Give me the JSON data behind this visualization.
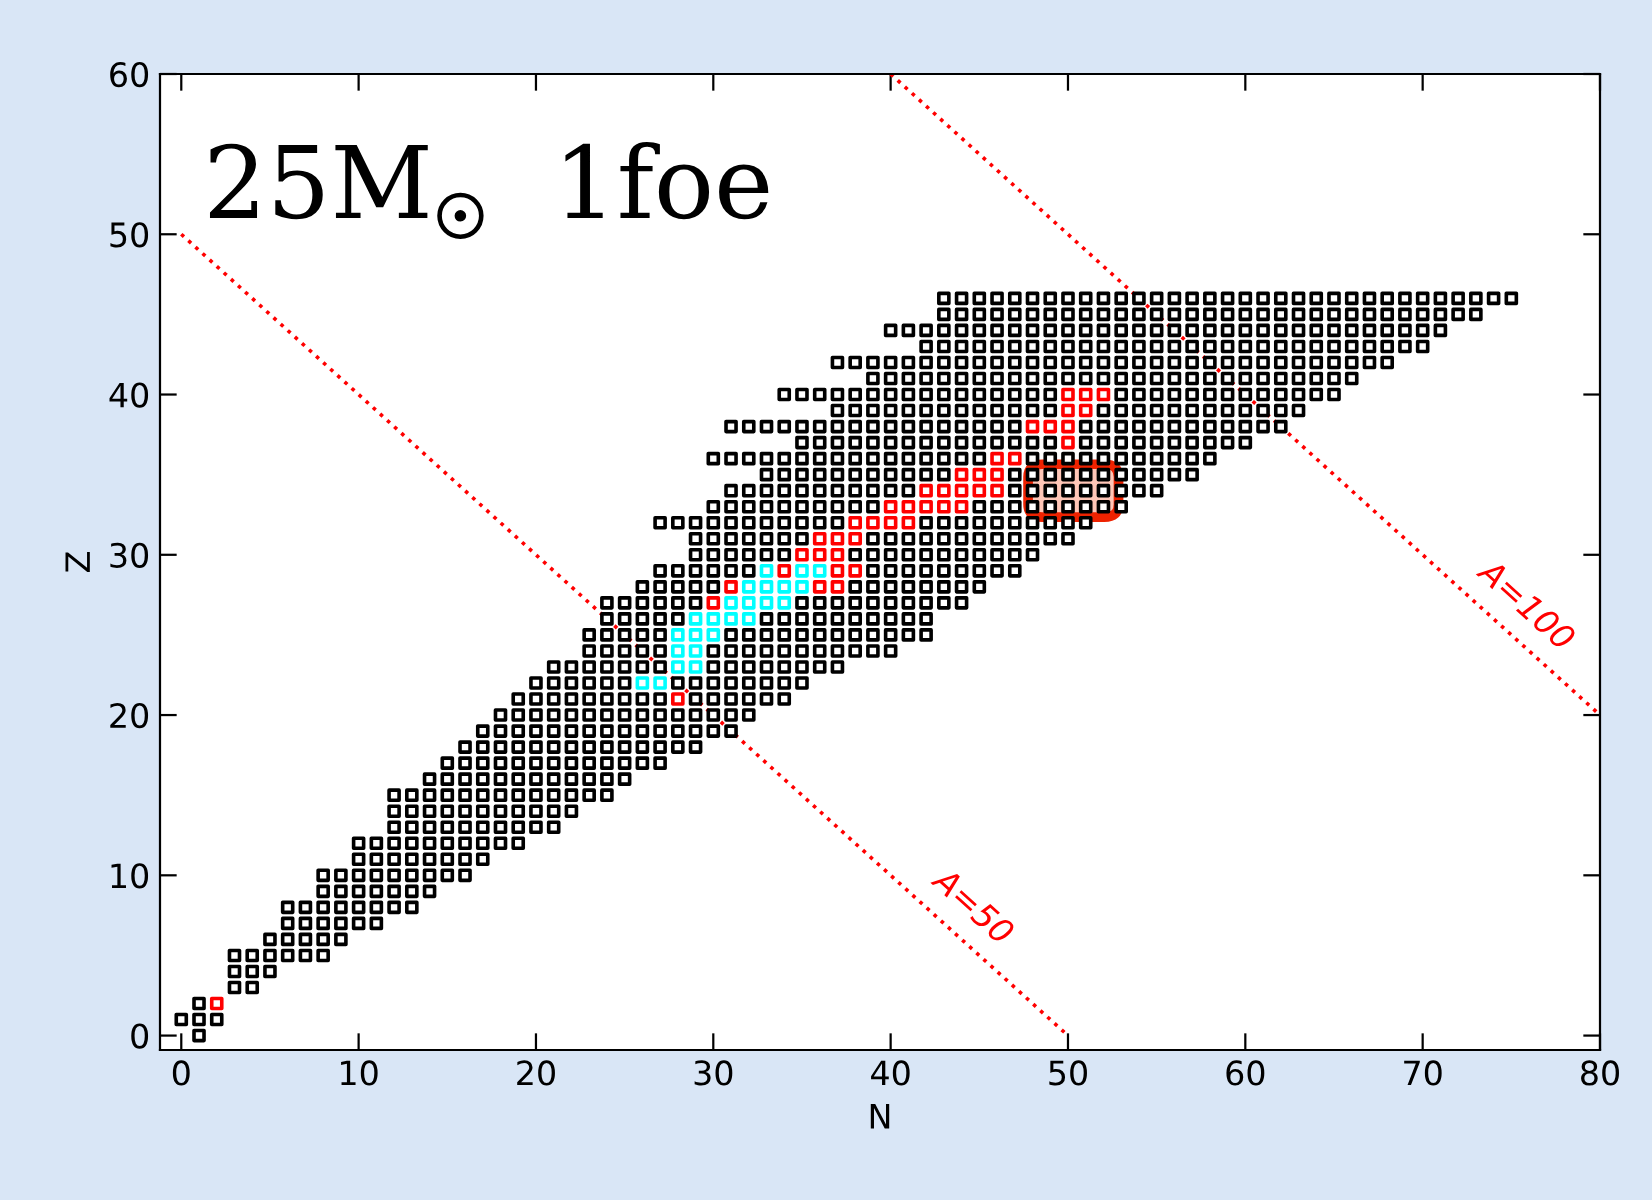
{
  "chart_data": {
    "type": "scatter",
    "xlabel": "N",
    "ylabel": "Z",
    "xlim": [
      -1.2,
      80
    ],
    "ylim": [
      -0.9,
      60
    ],
    "xticks": [
      0,
      10,
      20,
      30,
      40,
      50,
      60,
      70,
      80
    ],
    "yticks": [
      0,
      10,
      20,
      30,
      40,
      50,
      60
    ],
    "annotations": [
      "25M$_{☉}$  1foe"
    ],
    "marker": "square",
    "grid": false,
    "legend": false,
    "series": [
      {
        "color": "#000000",
        "x": [
          1
        ],
        "values": [
          0
        ]
      },
      {
        "color": "#000000",
        "x": [
          0,
          1,
          2
        ],
        "values": [
          1,
          1,
          1
        ]
      },
      {
        "color": "#000000",
        "x": [
          1
        ],
        "values": [
          2
        ]
      },
      {
        "color": "#000000",
        "x": [
          3,
          4
        ],
        "values": [
          3,
          3
        ]
      },
      {
        "color": "#000000",
        "x": [
          3,
          4,
          5
        ],
        "values": [
          4,
          4,
          4
        ]
      },
      {
        "color": "#000000",
        "x": [
          3,
          4,
          5,
          6,
          7,
          8
        ],
        "values": [
          5,
          5,
          5,
          5,
          5,
          5
        ]
      },
      {
        "color": "#000000",
        "x": [
          5,
          6,
          7,
          8,
          9
        ],
        "values": [
          6,
          6,
          6,
          6,
          6
        ]
      },
      {
        "color": "#000000",
        "x": [
          6,
          7,
          8,
          9,
          10,
          11
        ],
        "values": [
          7,
          7,
          7,
          7,
          7,
          7
        ]
      },
      {
        "color": "#000000",
        "x": [
          6,
          7,
          8,
          9,
          10,
          11,
          12,
          13
        ],
        "values": [
          8,
          8,
          8,
          8,
          8,
          8,
          8,
          8
        ]
      },
      {
        "color": "#000000",
        "x": [
          8,
          9,
          10,
          11,
          12,
          13,
          14
        ],
        "values": [
          9,
          9,
          9,
          9,
          9,
          9,
          9
        ]
      },
      {
        "color": "#000000",
        "x": [
          8,
          9,
          10,
          11,
          12,
          13,
          14,
          15,
          16
        ],
        "values": [
          10,
          10,
          10,
          10,
          10,
          10,
          10,
          10,
          10
        ]
      },
      {
        "color": "#000000",
        "x": [
          10,
          11,
          12,
          13,
          14,
          15,
          16,
          17
        ],
        "values": [
          11,
          11,
          11,
          11,
          11,
          11,
          11,
          11
        ]
      },
      {
        "color": "#000000",
        "x": [
          10,
          11,
          12,
          13,
          14,
          15,
          16,
          17,
          18,
          19
        ],
        "values": [
          12,
          12,
          12,
          12,
          12,
          12,
          12,
          12,
          12,
          12
        ]
      },
      {
        "color": "#000000",
        "x": [
          12,
          13,
          14,
          15,
          16,
          17,
          18,
          19,
          20,
          21
        ],
        "values": [
          13,
          13,
          13,
          13,
          13,
          13,
          13,
          13,
          13,
          13
        ]
      },
      {
        "color": "#000000",
        "x": [
          12,
          13,
          14,
          15,
          16,
          17,
          18,
          19,
          20,
          21,
          22
        ],
        "values": [
          14,
          14,
          14,
          14,
          14,
          14,
          14,
          14,
          14,
          14,
          14
        ]
      },
      {
        "color": "#000000",
        "x": [
          12,
          13,
          14,
          15,
          16,
          17,
          18,
          19,
          20,
          21,
          22,
          23,
          24
        ],
        "values": [
          15,
          15,
          15,
          15,
          15,
          15,
          15,
          15,
          15,
          15,
          15,
          15,
          15
        ]
      },
      {
        "color": "#000000",
        "x": [
          14,
          15,
          16,
          17,
          18,
          19,
          20,
          21,
          22,
          23,
          24,
          25
        ],
        "values": [
          16,
          16,
          16,
          16,
          16,
          16,
          16,
          16,
          16,
          16,
          16,
          16
        ]
      },
      {
        "color": "#000000",
        "x": [
          15,
          16,
          17,
          18,
          19,
          20,
          21,
          22,
          23,
          24,
          25,
          26,
          27
        ],
        "values": [
          17,
          17,
          17,
          17,
          17,
          17,
          17,
          17,
          17,
          17,
          17,
          17,
          17
        ]
      },
      {
        "color": "#000000",
        "x": [
          16,
          17,
          18,
          19,
          20,
          21,
          22,
          23,
          24,
          25,
          26,
          27,
          28,
          29
        ],
        "values": [
          18,
          18,
          18,
          18,
          18,
          18,
          18,
          18,
          18,
          18,
          18,
          18,
          18,
          18
        ]
      },
      {
        "color": "#000000",
        "x": [
          17,
          18,
          19,
          20,
          21,
          22,
          23,
          24,
          25,
          26,
          27,
          28,
          29,
          30,
          31
        ],
        "values": [
          19,
          19,
          19,
          19,
          19,
          19,
          19,
          19,
          19,
          19,
          19,
          19,
          19,
          19,
          19
        ]
      },
      {
        "color": "#000000",
        "x": [
          18,
          19,
          20,
          21,
          22,
          23,
          24,
          25,
          26,
          27,
          28,
          29,
          30,
          31,
          32
        ],
        "values": [
          20,
          20,
          20,
          20,
          20,
          20,
          20,
          20,
          20,
          20,
          20,
          20,
          20,
          20,
          20
        ]
      },
      {
        "color": "#000000",
        "x": [
          19,
          20,
          21,
          22,
          23,
          24,
          25,
          26,
          27,
          29,
          30,
          31,
          32,
          33,
          34
        ],
        "values": [
          21,
          21,
          21,
          21,
          21,
          21,
          21,
          21,
          21,
          21,
          21,
          21,
          21,
          21,
          21
        ]
      },
      {
        "color": "#000000",
        "x": [
          20,
          21,
          22,
          23,
          24,
          25,
          28,
          29,
          30,
          31,
          32,
          33,
          34,
          35
        ],
        "values": [
          22,
          22,
          22,
          22,
          22,
          22,
          22,
          22,
          22,
          22,
          22,
          22,
          22,
          22
        ]
      },
      {
        "color": "#000000",
        "x": [
          21,
          22,
          23,
          24,
          25,
          26,
          27,
          30,
          31,
          32,
          33,
          34,
          35,
          36,
          37
        ],
        "values": [
          23,
          23,
          23,
          23,
          23,
          23,
          23,
          23,
          23,
          23,
          23,
          23,
          23,
          23,
          23
        ]
      },
      {
        "color": "#000000",
        "x": [
          23,
          24,
          25,
          26,
          27,
          30,
          31,
          32,
          33,
          34,
          35,
          36,
          37,
          38,
          39,
          40
        ],
        "values": [
          24,
          24,
          24,
          24,
          24,
          24,
          24,
          24,
          24,
          24,
          24,
          24,
          24,
          24,
          24,
          24
        ]
      },
      {
        "color": "#000000",
        "x": [
          23,
          24,
          25,
          26,
          27,
          31,
          32,
          33,
          34,
          35,
          36,
          37,
          38,
          39,
          40,
          41,
          42
        ],
        "values": [
          25,
          25,
          25,
          25,
          25,
          25,
          25,
          25,
          25,
          25,
          25,
          25,
          25,
          25,
          25,
          25,
          25
        ]
      },
      {
        "color": "#000000",
        "x": [
          24,
          25,
          26,
          27,
          28,
          33,
          34,
          35,
          36,
          37,
          38,
          39,
          40,
          41,
          42
        ],
        "values": [
          26,
          26,
          26,
          26,
          26,
          26,
          26,
          26,
          26,
          26,
          26,
          26,
          26,
          26,
          26
        ]
      },
      {
        "color": "#000000",
        "x": [
          24,
          25,
          26,
          27,
          28,
          29,
          35,
          36,
          37,
          38,
          39,
          40,
          41,
          42,
          43,
          44
        ],
        "values": [
          27,
          27,
          27,
          27,
          27,
          27,
          27,
          27,
          27,
          27,
          27,
          27,
          27,
          27,
          27,
          27
        ]
      },
      {
        "color": "#000000",
        "x": [
          26,
          27,
          28,
          29,
          30,
          38,
          39,
          40,
          41,
          42,
          43,
          44,
          45
        ],
        "values": [
          28,
          28,
          28,
          28,
          28,
          28,
          28,
          28,
          28,
          28,
          28,
          28,
          28
        ]
      },
      {
        "color": "#000000",
        "x": [
          27,
          28,
          29,
          30,
          31,
          32,
          39,
          40,
          41,
          42,
          43,
          44,
          45,
          46,
          47
        ],
        "values": [
          29,
          29,
          29,
          29,
          29,
          29,
          29,
          29,
          29,
          29,
          29,
          29,
          29,
          29,
          29
        ]
      },
      {
        "color": "#000000",
        "x": [
          29,
          30,
          31,
          32,
          33,
          34,
          38,
          39,
          40,
          41,
          42,
          43,
          44,
          45,
          46,
          47,
          48
        ],
        "values": [
          30,
          30,
          30,
          30,
          30,
          30,
          30,
          30,
          30,
          30,
          30,
          30,
          30,
          30,
          30,
          30,
          30
        ]
      },
      {
        "color": "#000000",
        "x": [
          29,
          30,
          31,
          32,
          33,
          34,
          35,
          39,
          40,
          41,
          42,
          43,
          44,
          45,
          46,
          47,
          48,
          49,
          50
        ],
        "values": [
          31,
          31,
          31,
          31,
          31,
          31,
          31,
          31,
          31,
          31,
          31,
          31,
          31,
          31,
          31,
          31,
          31,
          31,
          31
        ]
      },
      {
        "color": "#000000",
        "x": [
          27,
          28,
          29,
          30,
          31,
          32,
          33,
          34,
          35,
          36,
          37,
          42,
          43,
          44,
          45,
          46,
          47,
          48,
          49,
          50,
          51
        ],
        "values": [
          32,
          32,
          32,
          32,
          32,
          32,
          32,
          32,
          32,
          32,
          32,
          32,
          32,
          32,
          32,
          32,
          32,
          32,
          32,
          32,
          32
        ]
      },
      {
        "color": "#000000",
        "x": [
          30,
          31,
          32,
          33,
          34,
          35,
          36,
          37,
          38,
          39,
          45,
          46,
          47,
          48,
          49,
          50,
          51,
          52,
          53
        ],
        "values": [
          33,
          33,
          33,
          33,
          33,
          33,
          33,
          33,
          33,
          33,
          33,
          33,
          33,
          33,
          33,
          33,
          33,
          33,
          33
        ]
      },
      {
        "color": "#000000",
        "x": [
          31,
          32,
          33,
          34,
          35,
          36,
          37,
          38,
          39,
          40,
          41,
          47,
          48,
          49,
          50,
          51,
          52,
          53,
          54,
          55
        ],
        "values": [
          34,
          34,
          34,
          34,
          34,
          34,
          34,
          34,
          34,
          34,
          34,
          34,
          34,
          34,
          34,
          34,
          34,
          34,
          34,
          34
        ]
      },
      {
        "color": "#000000",
        "x": [
          33,
          34,
          35,
          36,
          37,
          38,
          39,
          40,
          41,
          42,
          43,
          47,
          48,
          49,
          50,
          51,
          52,
          53,
          54,
          55,
          56,
          57
        ],
        "values": [
          35,
          35,
          35,
          35,
          35,
          35,
          35,
          35,
          35,
          35,
          35,
          35,
          35,
          35,
          35,
          35,
          35,
          35,
          35,
          35,
          35,
          35
        ]
      },
      {
        "color": "#000000",
        "x": [
          30,
          31,
          32,
          33,
          34,
          35,
          36,
          37,
          38,
          39,
          40,
          41,
          42,
          43,
          44,
          45,
          48,
          49,
          50,
          51,
          52,
          53,
          54,
          55,
          56,
          57,
          58
        ],
        "values": [
          36,
          36,
          36,
          36,
          36,
          36,
          36,
          36,
          36,
          36,
          36,
          36,
          36,
          36,
          36,
          36,
          36,
          36,
          36,
          36,
          36,
          36,
          36,
          36,
          36,
          36,
          36
        ]
      },
      {
        "color": "#000000",
        "x": [
          35,
          36,
          37,
          38,
          39,
          40,
          41,
          42,
          43,
          44,
          45,
          46,
          47,
          48,
          49,
          51,
          52,
          53,
          54,
          55,
          56,
          57,
          58,
          59,
          60
        ],
        "values": [
          37,
          37,
          37,
          37,
          37,
          37,
          37,
          37,
          37,
          37,
          37,
          37,
          37,
          37,
          37,
          37,
          37,
          37,
          37,
          37,
          37,
          37,
          37,
          37,
          37
        ]
      },
      {
        "color": "#000000",
        "x": [
          31,
          32,
          33,
          34,
          35,
          36,
          37,
          38,
          39,
          40,
          41,
          42,
          43,
          44,
          45,
          46,
          47,
          51,
          52,
          53,
          54,
          55,
          56,
          57,
          58,
          59,
          60,
          61,
          62
        ],
        "values": [
          38,
          38,
          38,
          38,
          38,
          38,
          38,
          38,
          38,
          38,
          38,
          38,
          38,
          38,
          38,
          38,
          38,
          38,
          38,
          38,
          38,
          38,
          38,
          38,
          38,
          38,
          38,
          38,
          38
        ]
      },
      {
        "color": "#000000",
        "x": [
          37,
          38,
          39,
          40,
          41,
          42,
          43,
          44,
          45,
          46,
          47,
          48,
          49,
          52,
          53,
          54,
          55,
          56,
          57,
          58,
          59,
          60,
          61,
          62,
          63
        ],
        "values": [
          39,
          39,
          39,
          39,
          39,
          39,
          39,
          39,
          39,
          39,
          39,
          39,
          39,
          39,
          39,
          39,
          39,
          39,
          39,
          39,
          39,
          39,
          39,
          39,
          39
        ]
      },
      {
        "color": "#000000",
        "x": [
          34,
          35,
          36,
          37,
          38,
          39,
          40,
          41,
          42,
          43,
          44,
          45,
          46,
          47,
          48,
          49,
          53,
          54,
          55,
          56,
          57,
          58,
          59,
          60,
          61,
          62,
          63,
          64,
          65
        ],
        "values": [
          40,
          40,
          40,
          40,
          40,
          40,
          40,
          40,
          40,
          40,
          40,
          40,
          40,
          40,
          40,
          40,
          40,
          40,
          40,
          40,
          40,
          40,
          40,
          40,
          40,
          40,
          40,
          40,
          40
        ]
      },
      {
        "color": "#000000",
        "x": [
          39,
          40,
          41,
          42,
          43,
          44,
          45,
          46,
          47,
          48,
          49,
          50,
          51,
          52,
          53,
          54,
          55,
          56,
          57,
          58,
          59,
          60,
          61,
          62,
          63,
          64,
          65,
          66
        ],
        "values": [
          41,
          41,
          41,
          41,
          41,
          41,
          41,
          41,
          41,
          41,
          41,
          41,
          41,
          41,
          41,
          41,
          41,
          41,
          41,
          41,
          41,
          41,
          41,
          41,
          41,
          41,
          41,
          41
        ]
      },
      {
        "color": "#000000",
        "x": [
          37,
          38,
          39,
          40,
          41,
          42,
          43,
          44,
          45,
          46,
          47,
          48,
          49,
          50,
          51,
          52,
          53,
          54,
          55,
          56,
          57,
          58,
          59,
          60,
          61,
          62,
          63,
          64,
          65,
          66,
          67,
          68
        ],
        "values": [
          42,
          42,
          42,
          42,
          42,
          42,
          42,
          42,
          42,
          42,
          42,
          42,
          42,
          42,
          42,
          42,
          42,
          42,
          42,
          42,
          42,
          42,
          42,
          42,
          42,
          42,
          42,
          42,
          42,
          42,
          42,
          42
        ]
      },
      {
        "color": "#000000",
        "x": [
          42,
          43,
          44,
          45,
          46,
          47,
          48,
          49,
          50,
          51,
          52,
          53,
          54,
          55,
          56,
          57,
          58,
          59,
          60,
          61,
          62,
          63,
          64,
          65,
          66,
          67,
          68,
          69,
          70
        ],
        "values": [
          43,
          43,
          43,
          43,
          43,
          43,
          43,
          43,
          43,
          43,
          43,
          43,
          43,
          43,
          43,
          43,
          43,
          43,
          43,
          43,
          43,
          43,
          43,
          43,
          43,
          43,
          43,
          43,
          43
        ]
      },
      {
        "color": "#000000",
        "x": [
          40,
          41,
          42,
          43,
          44,
          45,
          46,
          47,
          48,
          49,
          50,
          51,
          52,
          53,
          54,
          55,
          56,
          57,
          58,
          59,
          60,
          61,
          62,
          63,
          64,
          65,
          66,
          67,
          68,
          69,
          70,
          71
        ],
        "values": [
          44,
          44,
          44,
          44,
          44,
          44,
          44,
          44,
          44,
          44,
          44,
          44,
          44,
          44,
          44,
          44,
          44,
          44,
          44,
          44,
          44,
          44,
          44,
          44,
          44,
          44,
          44,
          44,
          44,
          44,
          44,
          44
        ]
      },
      {
        "color": "#000000",
        "x": [
          43,
          44,
          45,
          46,
          47,
          48,
          49,
          50,
          51,
          52,
          53,
          54,
          55,
          56,
          57,
          58,
          59,
          60,
          61,
          62,
          63,
          64,
          65,
          66,
          67,
          68,
          69,
          70,
          71,
          72,
          73
        ],
        "values": [
          45,
          45,
          45,
          45,
          45,
          45,
          45,
          45,
          45,
          45,
          45,
          45,
          45,
          45,
          45,
          45,
          45,
          45,
          45,
          45,
          45,
          45,
          45,
          45,
          45,
          45,
          45,
          45,
          45,
          45,
          45
        ]
      },
      {
        "color": "#000000",
        "x": [
          43,
          44,
          45,
          46,
          47,
          48,
          49,
          50,
          51,
          52,
          53,
          54,
          55,
          56,
          57,
          58,
          59,
          60,
          61,
          62,
          63,
          64,
          65,
          66,
          67,
          68,
          69,
          70,
          71,
          72,
          73,
          74,
          75
        ],
        "values": [
          46,
          46,
          46,
          46,
          46,
          46,
          46,
          46,
          46,
          46,
          46,
          46,
          46,
          46,
          46,
          46,
          46,
          46,
          46,
          46,
          46,
          46,
          46,
          46,
          46,
          46,
          46,
          46,
          46,
          46,
          46,
          46,
          46
        ]
      },
      {
        "color": "#ff0000",
        "x": [
          2,
          28,
          30,
          31,
          36,
          37,
          34,
          37,
          38,
          35,
          36,
          37,
          36,
          37,
          38,
          38,
          39,
          40,
          41,
          40,
          41,
          42,
          43,
          44,
          42,
          43,
          44,
          45,
          46,
          44,
          45,
          46,
          46,
          47,
          50,
          48,
          49,
          50,
          50,
          51,
          50,
          51,
          52
        ],
        "values": [
          2,
          21,
          27,
          28,
          28,
          28,
          29,
          29,
          29,
          30,
          30,
          30,
          31,
          31,
          31,
          32,
          32,
          32,
          32,
          33,
          33,
          33,
          33,
          33,
          34,
          34,
          34,
          34,
          34,
          35,
          35,
          35,
          36,
          36,
          37,
          38,
          38,
          38,
          39,
          39,
          40,
          40,
          40
        ]
      },
      {
        "color": "#00ffff",
        "x": [
          26,
          27,
          28,
          29,
          28,
          29,
          28,
          29,
          30,
          29,
          30,
          31,
          32,
          31,
          32,
          33,
          34,
          32,
          33,
          34,
          35,
          33,
          35,
          36
        ],
        "values": [
          22,
          22,
          23,
          23,
          24,
          24,
          25,
          25,
          25,
          26,
          26,
          26,
          26,
          27,
          27,
          27,
          27,
          28,
          28,
          28,
          28,
          29,
          29,
          29
        ]
      },
      {
        "type": "line",
        "name": "A=50",
        "color": "#ff0000",
        "line_style": "dotted",
        "marker": "none",
        "x": [
          0,
          50
        ],
        "values": [
          50,
          0
        ]
      },
      {
        "type": "line",
        "name": "A=100",
        "color": "#ff0000",
        "line_style": "dotted",
        "marker": "none",
        "x": [
          40,
          80
        ],
        "values": [
          60,
          20
        ]
      }
    ]
  }
}
